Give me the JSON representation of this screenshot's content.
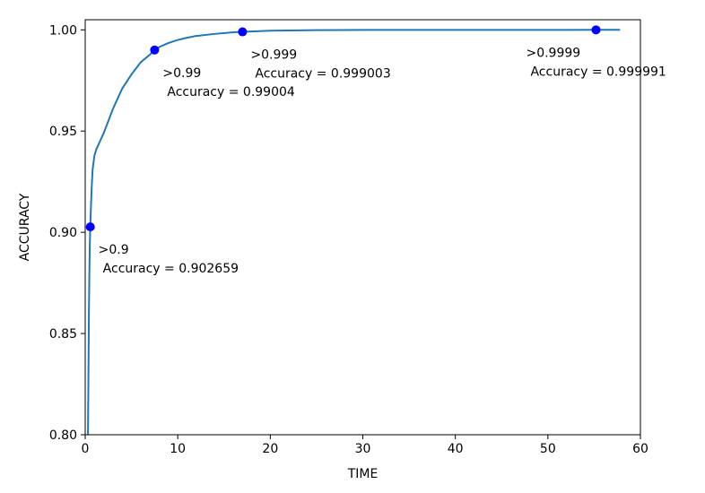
{
  "chart_data": {
    "type": "line",
    "title": "",
    "xlabel": "TIME",
    "ylabel": "ACCURACY",
    "xlim": [
      0,
      60
    ],
    "ylim": [
      0.8,
      1.005
    ],
    "grid": false,
    "xticks": [
      0,
      10,
      20,
      30,
      40,
      50,
      60
    ],
    "xtick_labels": [
      "0",
      "10",
      "20",
      "30",
      "40",
      "50",
      "60"
    ],
    "yticks": [
      0.8,
      0.85,
      0.9,
      0.95,
      1.0
    ],
    "ytick_labels": [
      "0.80",
      "0.85",
      "0.90",
      "0.95",
      "1.00"
    ],
    "series": [
      {
        "color": "#1f77b4",
        "x": [
          0.3,
          0.35,
          0.4,
          0.45,
          0.5,
          0.55,
          0.6,
          0.7,
          0.8,
          1.0,
          1.2,
          1.5,
          2.0,
          2.5,
          3.0,
          3.5,
          4.0,
          5.0,
          6.0,
          7.0,
          7.5,
          8.0,
          9.0,
          10.0,
          11.0,
          12.0,
          14.0,
          16.0,
          17.0,
          20.0,
          25.0,
          30.0,
          40.0,
          50.0,
          55.2,
          57.8
        ],
        "y": [
          0.8,
          0.83,
          0.86,
          0.88,
          0.895,
          0.9027,
          0.91,
          0.922,
          0.931,
          0.938,
          0.941,
          0.944,
          0.949,
          0.955,
          0.961,
          0.966,
          0.971,
          0.978,
          0.984,
          0.9878,
          0.99004,
          0.9915,
          0.9935,
          0.995,
          0.9961,
          0.997,
          0.998,
          0.9988,
          0.999003,
          0.99955,
          0.99985,
          0.99995,
          0.99998,
          0.999988,
          0.999991,
          0.999993
        ]
      }
    ],
    "points": [
      {
        "x": 0.55,
        "y": 0.902659,
        "label": ">0.9",
        "accuracy_text": "Accuracy = 0.902659"
      },
      {
        "x": 7.5,
        "y": 0.99004,
        "label": ">0.99",
        "accuracy_text": "Accuracy = 0.99004"
      },
      {
        "x": 17.0,
        "y": 0.999003,
        "label": ">0.999",
        "accuracy_text": "Accuracy = 0.999003"
      },
      {
        "x": 55.2,
        "y": 0.999991,
        "label": ">0.9999",
        "accuracy_text": "Accuracy = 0.999991"
      }
    ],
    "point_color": "#0000ff"
  }
}
